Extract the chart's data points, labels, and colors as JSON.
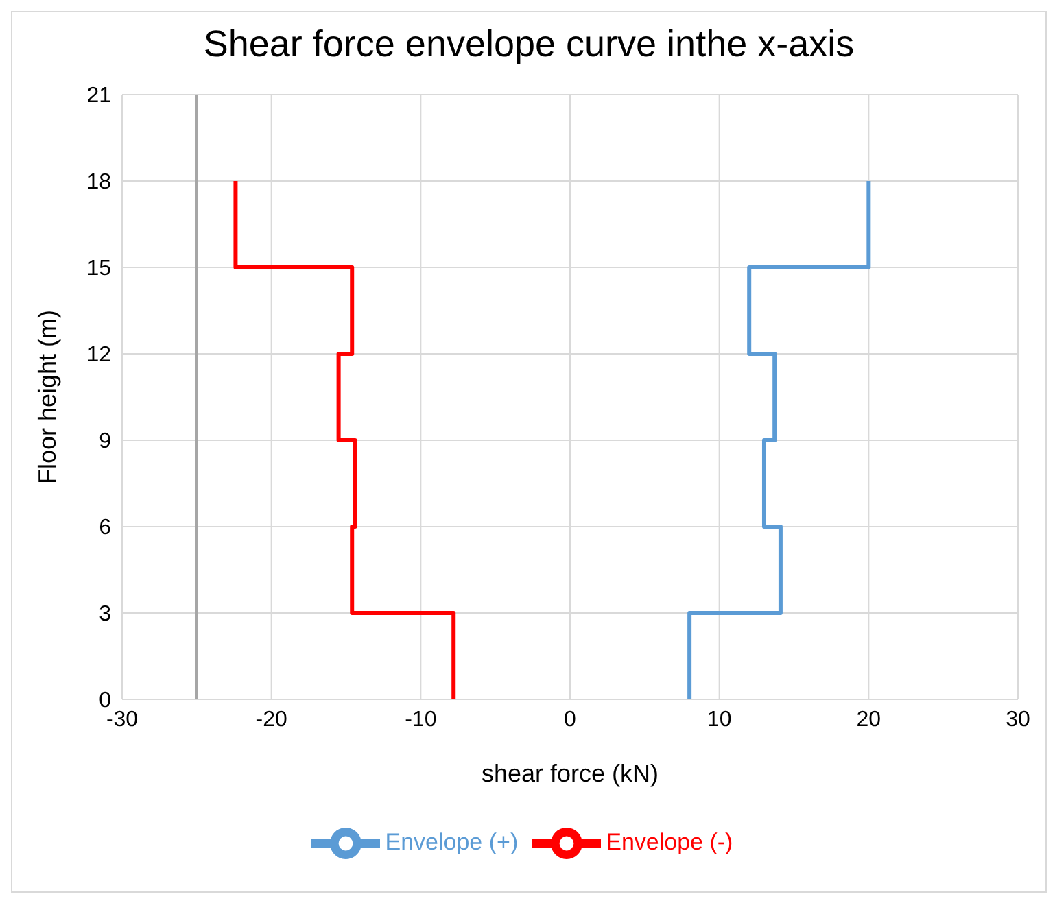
{
  "chart_data": {
    "type": "line",
    "title": "Shear force envelope curve inthe x-axis",
    "xlabel": "shear force (kN)",
    "ylabel": "Floor height (m)",
    "series": [
      {
        "name": "Envelope (+)",
        "color": "#5b9bd5",
        "x": [
          8,
          8,
          14.1,
          14.1,
          13,
          13,
          13.7,
          13.7,
          12,
          12,
          20,
          20
        ],
        "values": [
          0,
          3,
          3,
          6,
          6,
          9,
          9,
          12,
          12,
          15,
          15,
          18
        ]
      },
      {
        "name": "Envelope (-)",
        "color": "#ff0000",
        "x": [
          -7.8,
          -7.8,
          -14.6,
          -14.6,
          -14.4,
          -14.4,
          -15.5,
          -15.5,
          -14.6,
          -14.6,
          -22.4,
          -22.4
        ],
        "values": [
          0,
          3,
          3,
          6,
          6,
          9,
          9,
          12,
          12,
          15,
          15,
          18
        ]
      }
    ],
    "xlim": [
      -30,
      30
    ],
    "xticks": [
      -30,
      -20,
      -10,
      0,
      10,
      20,
      30
    ],
    "ylim": [
      0,
      21
    ],
    "yticks": [
      0,
      3,
      6,
      9,
      12,
      15,
      18,
      21
    ],
    "ref_lines": [
      {
        "axis": "x",
        "value": -25,
        "color": "#a6a6a6"
      }
    ],
    "grid": true,
    "legend": "bottom",
    "marker": "none",
    "line_style": "solid"
  }
}
